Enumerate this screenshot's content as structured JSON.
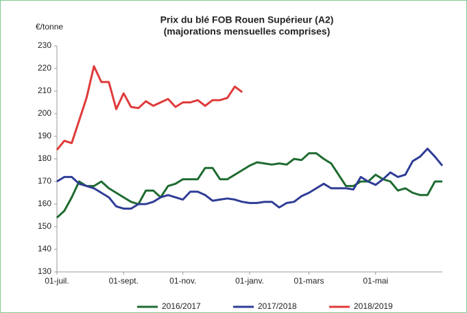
{
  "chart_data": {
    "type": "line",
    "title": "Prix du blé FOB Rouen Supérieur (A2)",
    "subtitle": "(majorations mensuelles comprises)",
    "y_label": "€/tonne",
    "categories": [
      "01-juil.",
      null,
      null,
      null,
      null,
      null,
      null,
      null,
      null,
      "01-sept.",
      null,
      null,
      null,
      null,
      null,
      null,
      null,
      "01-nov.",
      null,
      null,
      null,
      null,
      null,
      null,
      null,
      null,
      "01-janv.",
      null,
      null,
      null,
      null,
      null,
      null,
      null,
      "01-mars",
      null,
      null,
      null,
      null,
      null,
      null,
      null,
      null,
      "01-mai",
      null,
      null,
      null,
      null,
      null,
      null,
      null,
      null,
      null
    ],
    "ylim": [
      130,
      230
    ],
    "yticks": [
      130,
      140,
      150,
      160,
      170,
      180,
      190,
      200,
      210,
      220,
      230
    ],
    "grid": false,
    "legend": "bottom",
    "series": [
      {
        "name": "2016/2017",
        "color": "#1e6b30",
        "values": [
          154,
          157,
          163,
          170,
          168,
          168,
          170,
          167,
          165,
          163,
          161,
          160,
          166,
          166,
          163,
          168,
          169,
          171,
          171,
          171,
          176,
          176,
          171,
          171,
          173,
          175,
          177,
          178.5,
          178,
          177.5,
          178,
          177.5,
          180,
          179.5,
          182.5,
          182.5,
          180,
          178,
          173,
          168,
          168,
          170,
          170,
          173,
          171,
          170,
          166,
          167,
          165,
          164,
          164,
          170,
          170
        ]
      },
      {
        "name": "2017/2018",
        "color": "#2e3c96",
        "values": [
          170,
          172,
          172,
          169,
          168,
          167,
          165,
          163,
          159,
          158,
          158,
          160,
          160,
          161,
          163,
          164,
          163,
          162,
          165.5,
          165.5,
          164,
          161.5,
          162,
          162.5,
          162,
          161,
          160.5,
          160.5,
          161,
          161,
          158.5,
          160.5,
          161,
          163.5,
          165,
          167,
          169,
          167,
          167,
          167,
          166.5,
          172,
          170,
          168.5,
          171,
          174,
          172,
          173,
          179,
          181,
          184.5,
          181,
          177
        ]
      },
      {
        "name": "2018/2019",
        "color": "#e03a3a",
        "values": [
          184,
          188,
          187,
          197,
          207,
          221,
          214,
          214,
          202,
          209,
          203,
          202.5,
          205.5,
          203.5,
          205,
          206.5,
          203,
          205,
          205,
          206,
          203.5,
          206,
          206,
          207,
          212,
          209.5,
          null,
          null,
          null,
          null,
          null,
          null,
          null,
          null,
          null,
          null,
          null,
          null,
          null,
          null,
          null,
          null,
          null,
          null,
          null,
          null,
          null,
          null,
          null,
          null,
          null,
          null,
          null
        ]
      }
    ]
  }
}
